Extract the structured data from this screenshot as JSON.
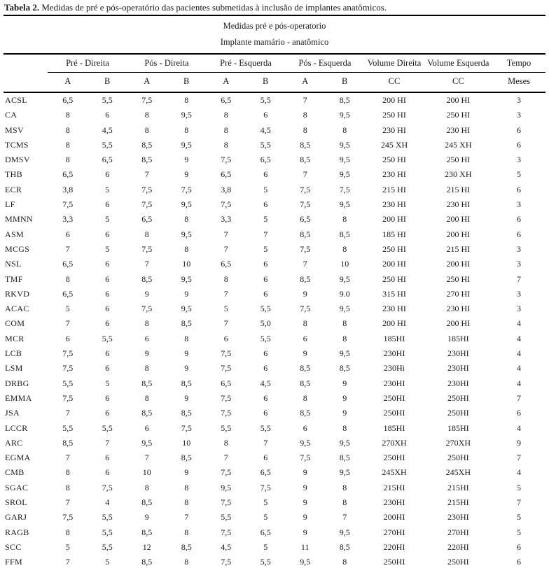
{
  "title": {
    "label": "Tabela 2.",
    "text": " Medidas de pré e pós-operatório das pacientes submetidas à inclusão de implantes anatômicos."
  },
  "table": {
    "band1": "Medidas pré e pós-operatorio",
    "band2": "Implante mamário - anatômico",
    "groups": {
      "pre_direita": "Pré - Direita",
      "pos_direita": "Pós - Direita",
      "pre_esquerda": "Pré - Esquerda",
      "pos_esquerda": "Pós - Esquerda",
      "volume_direita": "Volume Direita",
      "volume_esquerda": "Volume Esquerda",
      "tempo": "Tempo"
    },
    "sub": [
      "A",
      "B",
      "A",
      "B",
      "A",
      "B",
      "A",
      "B",
      "CC",
      "CC",
      "Meses"
    ],
    "rows": [
      {
        "id": "ACSL",
        "values": [
          "6,5",
          "5,5",
          "7,5",
          "8",
          "6,5",
          "5,5",
          "7",
          "8,5",
          "200 HI",
          "200 HI",
          "3"
        ]
      },
      {
        "id": "CA",
        "values": [
          "8",
          "6",
          "8",
          "9,5",
          "8",
          "6",
          "8",
          "9,5",
          "250 HI",
          "250 HI",
          "3"
        ]
      },
      {
        "id": "MSV",
        "values": [
          "8",
          "4,5",
          "8",
          "8",
          "8",
          "4,5",
          "8",
          "8",
          "230 HI",
          "230 HI",
          "6"
        ]
      },
      {
        "id": "TCMS",
        "values": [
          "8",
          "5,5",
          "8,5",
          "9,5",
          "8",
          "5,5",
          "8,5",
          "9,5",
          "245 XH",
          "245 XH",
          "6"
        ]
      },
      {
        "id": "DMSV",
        "values": [
          "8",
          "6,5",
          "8,5",
          "9",
          "7,5",
          "6,5",
          "8,5",
          "9,5",
          "250 HI",
          "250 HI",
          "3"
        ]
      },
      {
        "id": "THB",
        "values": [
          "6,5",
          "6",
          "7",
          "9",
          "6,5",
          "6",
          "7",
          "9,5",
          "230 HI",
          "230 XH",
          "5"
        ]
      },
      {
        "id": "ECR",
        "values": [
          "3,8",
          "5",
          "7,5",
          "7,5",
          "3,8",
          "5",
          "7,5",
          "7,5",
          "215 HI",
          "215 HI",
          "6"
        ]
      },
      {
        "id": "LF",
        "values": [
          "7,5",
          "6",
          "7,5",
          "9,5",
          "7,5",
          "6",
          "7,5",
          "9,5",
          "230 HI",
          "230 HI",
          "3"
        ]
      },
      {
        "id": "MMNN",
        "values": [
          "3,3",
          "5",
          "6,5",
          "8",
          "3,3",
          "5",
          "6,5",
          "8",
          "200 HI",
          "200 HI",
          "6"
        ]
      },
      {
        "id": "ASM",
        "values": [
          "6",
          "6",
          "8",
          "9,5",
          "7",
          "7",
          "8,5",
          "8,5",
          "185 HI",
          "200 HI",
          "6"
        ]
      },
      {
        "id": "MCGS",
        "values": [
          "7",
          "5",
          "7,5",
          "8",
          "7",
          "5",
          "7,5",
          "8",
          "250 HI",
          "215 HI",
          "3"
        ]
      },
      {
        "id": "NSL",
        "values": [
          "6,5",
          "6",
          "7",
          "10",
          "6,5",
          "6",
          "7",
          "10",
          "200 HI",
          "200 HI",
          "3"
        ]
      },
      {
        "id": "TMF",
        "values": [
          "8",
          "6",
          "8,5",
          "9,5",
          "8",
          "6",
          "8,5",
          "9,5",
          "250 HI",
          "250 HI",
          "7"
        ]
      },
      {
        "id": "RKVD",
        "values": [
          "6,5",
          "6",
          "9",
          "9",
          "7",
          "6",
          "9",
          "9.0",
          "315 HI",
          "270 HI",
          "3"
        ]
      },
      {
        "id": "ACAC",
        "values": [
          "5",
          "6",
          "7,5",
          "9,5",
          "5",
          "5,5",
          "7,5",
          "9,5",
          "230 HI",
          "230 HI",
          "3"
        ]
      },
      {
        "id": "COM",
        "values": [
          "7",
          "6",
          "8",
          "8,5",
          "7",
          "5,0",
          "8",
          "8",
          "200 HI",
          "200 HI",
          "4"
        ]
      },
      {
        "id": "MCR",
        "values": [
          "6",
          "5,5",
          "6",
          "8",
          "6",
          "5,5",
          "6",
          "8",
          "185HI",
          "185HI",
          "4"
        ]
      },
      {
        "id": "LCB",
        "values": [
          "7,5",
          "6",
          "9",
          "9",
          "7,5",
          "6",
          "9",
          "9,5",
          "230HI",
          "230HI",
          "4"
        ]
      },
      {
        "id": "LSM",
        "values": [
          "7,5",
          "6",
          "8",
          "9",
          "7,5",
          "6",
          "8,5",
          "8,5",
          "230Hi",
          "230HI",
          "4"
        ]
      },
      {
        "id": "DRBG",
        "values": [
          "5,5",
          "5",
          "8,5",
          "8,5",
          "6,5",
          "4,5",
          "8,5",
          "9",
          "230HI",
          "230HI",
          "4"
        ]
      },
      {
        "id": "EMMA",
        "values": [
          "7,5",
          "6",
          "8",
          "9",
          "7,5",
          "6",
          "8",
          "9",
          "250HI",
          "250HI",
          "7"
        ]
      },
      {
        "id": "JSA",
        "values": [
          "7",
          "6",
          "8,5",
          "8,5",
          "7,5",
          "6",
          "8,5",
          "9",
          "250HI",
          "250HI",
          "6"
        ]
      },
      {
        "id": "LCCR",
        "values": [
          "5,5",
          "5,5",
          "6",
          "7,5",
          "5,5",
          "5,5",
          "6",
          "8",
          "185HI",
          "185HI",
          "4"
        ]
      },
      {
        "id": "ARC",
        "values": [
          "8,5",
          "7",
          "9,5",
          "10",
          "8",
          "7",
          "9,5",
          "9,5",
          "270XH",
          "270XH",
          "9"
        ]
      },
      {
        "id": "EGMA",
        "values": [
          "7",
          "6",
          "7",
          "8,5",
          "7",
          "6",
          "7,5",
          "8,5",
          "250HI",
          "250HI",
          "7"
        ]
      },
      {
        "id": "CMB",
        "values": [
          "8",
          "6",
          "10",
          "9",
          "7,5",
          "6,5",
          "9",
          "9,5",
          "245XH",
          "245XH",
          "4"
        ]
      },
      {
        "id": "SGAC",
        "values": [
          "8",
          "7,5",
          "8",
          "8",
          "9,5",
          "7,5",
          "9",
          "8",
          "215HI",
          "215HI",
          "5"
        ]
      },
      {
        "id": "SROL",
        "values": [
          "7",
          "4",
          "8,5",
          "8",
          "7,5",
          "5",
          "9",
          "8",
          "230HI",
          "215HI",
          "7"
        ]
      },
      {
        "id": "GARJ",
        "values": [
          "7,5",
          "5,5",
          "9",
          "7",
          "5,5",
          "5",
          "9",
          "7",
          "200HI",
          "230HI",
          "5"
        ]
      },
      {
        "id": "RAGB",
        "values": [
          "8",
          "5,5",
          "8,5",
          "8",
          "7,5",
          "6,5",
          "9",
          "9,5",
          "270HI",
          "270HI",
          "5"
        ]
      },
      {
        "id": "SCC",
        "values": [
          "5",
          "5,5",
          "12",
          "8,5",
          "4,5",
          "5",
          "11",
          "8,5",
          "220HI",
          "220HI",
          "6"
        ]
      },
      {
        "id": "FFM",
        "values": [
          "7",
          "5",
          "8,5",
          "8",
          "7,5",
          "5,5",
          "9,5",
          "8",
          "250HI",
          "250HI",
          "6"
        ]
      }
    ]
  },
  "colors": {
    "text": "#1a1a1a",
    "rule": "#000000",
    "background": "#ffffff"
  }
}
